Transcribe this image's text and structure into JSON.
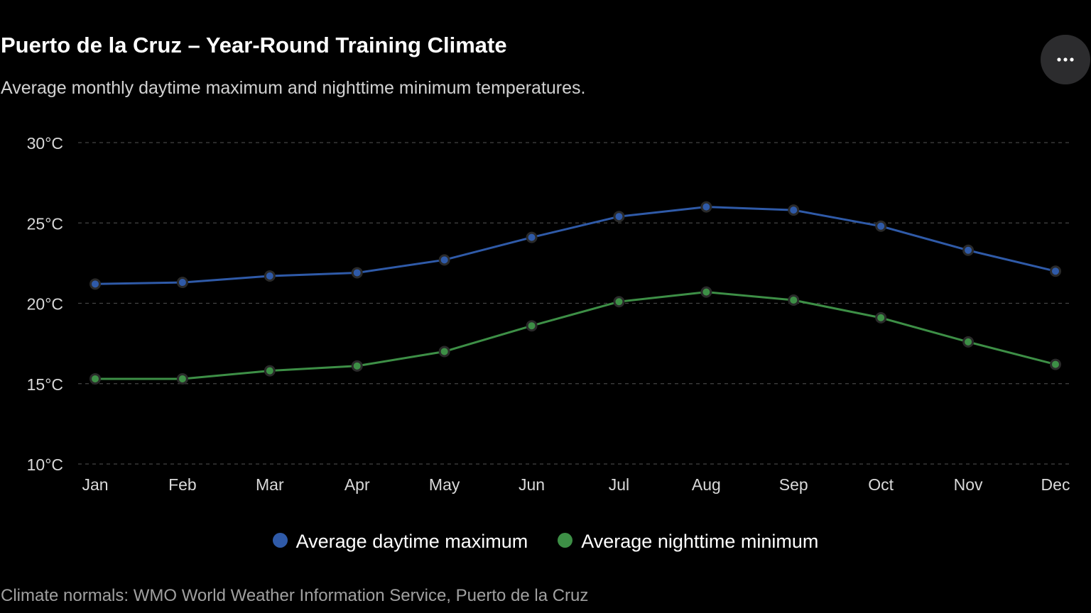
{
  "header": {
    "title": "Puerto de la Cruz – Year-Round Training Climate",
    "subtitle": "Average monthly daytime maximum and nighttime minimum temperatures.",
    "more_icon": "ellipsis-icon"
  },
  "footer": {
    "source": "Climate normals: WMO World Weather Information Service, Puerto de la Cruz"
  },
  "colors": {
    "background": "#000000",
    "max_series": "#2f5aa8",
    "min_series": "#3d8f46",
    "grid": "#444444",
    "tick_label": "#d9d9d9"
  },
  "chart_data": {
    "type": "line",
    "title": "Puerto de la Cruz – Year-Round Training Climate",
    "subtitle": "Average monthly daytime maximum and nighttime minimum temperatures.",
    "xlabel": "",
    "ylabel": "",
    "categories": [
      "Jan",
      "Feb",
      "Mar",
      "Apr",
      "May",
      "Jun",
      "Jul",
      "Aug",
      "Sep",
      "Oct",
      "Nov",
      "Dec"
    ],
    "series": [
      {
        "name": "Average daytime maximum",
        "color": "#2f5aa8",
        "values": [
          21.2,
          21.3,
          21.7,
          21.9,
          22.7,
          24.1,
          25.4,
          26.0,
          25.8,
          24.8,
          23.3,
          22.0
        ]
      },
      {
        "name": "Average nighttime minimum",
        "color": "#3d8f46",
        "values": [
          15.3,
          15.3,
          15.8,
          16.1,
          17.0,
          18.6,
          20.1,
          20.7,
          20.2,
          19.1,
          17.6,
          16.2
        ]
      }
    ],
    "ylim": [
      10,
      30
    ],
    "yticks": [
      10,
      15,
      20,
      25,
      30
    ],
    "ytick_labels": [
      "10°C",
      "15°C",
      "20°C",
      "25°C",
      "30°C"
    ],
    "grid": true,
    "grid_style": "dashed",
    "legend_position": "bottom-center"
  }
}
